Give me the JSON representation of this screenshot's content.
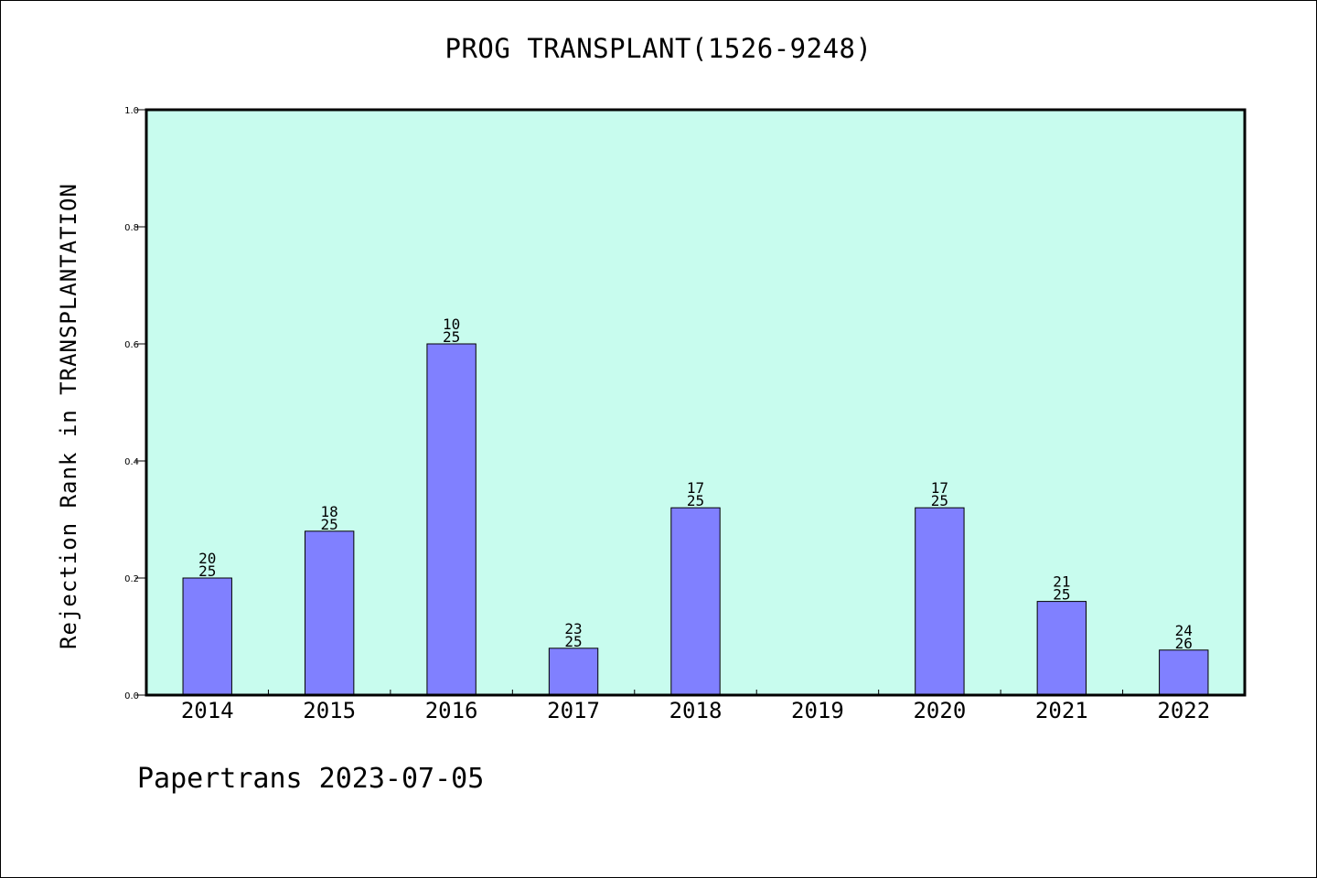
{
  "chart_data": {
    "type": "bar",
    "title": "PROG TRANSPLANT(1526-9248)",
    "ylabel": "Rejection Rank in TRANSPLANTATION",
    "xlabel": "",
    "categories": [
      "2014",
      "2015",
      "2016",
      "2017",
      "2018",
      "2019",
      "2020",
      "2021",
      "2022"
    ],
    "values": [
      0.2,
      0.28,
      0.6,
      0.08,
      0.32,
      null,
      0.32,
      0.16,
      0.0769
    ],
    "bar_labels": [
      [
        "20",
        "25"
      ],
      [
        "18",
        "25"
      ],
      [
        "10",
        "25"
      ],
      [
        "23",
        "25"
      ],
      [
        "17",
        "25"
      ],
      null,
      [
        "17",
        "25"
      ],
      [
        "21",
        "25"
      ],
      [
        "24",
        "26"
      ]
    ],
    "ylim": [
      0,
      1.0
    ],
    "yticks": [
      "0.0",
      "0.2",
      "0.4",
      "0.6",
      "0.8",
      "1.0"
    ],
    "grid": false,
    "legend": "none"
  },
  "footer": "Papertrans 2023-07-05",
  "colors": {
    "plot_background": "#c8fcee",
    "bar_fill": "#8080ff",
    "bar_stroke": "#000000",
    "axis": "#000000",
    "text": "#000000"
  }
}
